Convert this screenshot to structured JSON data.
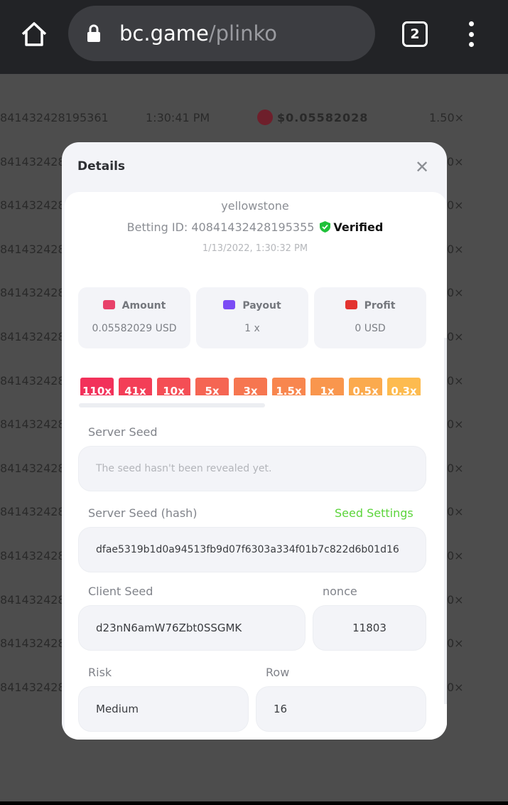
{
  "browser": {
    "url_host": "bc.game",
    "url_path": "/plinko",
    "tab_count": "2"
  },
  "background_rows": [
    {
      "id": "841432428195361",
      "time": "1:30:41 PM",
      "amount": "$0.05582028",
      "payout": "1.50×"
    },
    {
      "id": "841432428",
      "payout": "0×"
    },
    {
      "id": "841432428",
      "payout": "0×"
    },
    {
      "id": "841432428",
      "payout": "0×"
    },
    {
      "id": "841432428",
      "payout": "0×"
    },
    {
      "id": "841432428",
      "payout": "0×"
    },
    {
      "id": "841432428",
      "payout": "0×"
    },
    {
      "id": "841432428",
      "payout": "0×"
    },
    {
      "id": "841432428",
      "payout": "0×"
    },
    {
      "id": "841432428",
      "payout": "0×"
    },
    {
      "id": "841432428",
      "payout": "0×"
    },
    {
      "id": "841432428",
      "payout": "0×"
    },
    {
      "id": "841432428",
      "payout": "0×"
    },
    {
      "id": "841432428",
      "payout": "0×"
    }
  ],
  "modal": {
    "title": "Details",
    "username": "yellowstone",
    "betting_id_label": "Betting ID: 40841432428195355",
    "verified": "Verified",
    "datetime": "1/13/2022, 1:30:32 PM",
    "stats": [
      {
        "label": "Amount",
        "value": "0.05582029 USD",
        "icon": "hand-coins-icon",
        "color": "#e8416a"
      },
      {
        "label": "Payout",
        "value": "1 x",
        "icon": "card-icon",
        "color": "#7b4cf5"
      },
      {
        "label": "Profit",
        "value": "0 USD",
        "icon": "profit-hand-icon",
        "color": "#e3332f"
      }
    ],
    "multipliers": [
      {
        "label": "110x",
        "color": "#f2315a"
      },
      {
        "label": "41x",
        "color": "#f33e57"
      },
      {
        "label": "10x",
        "color": "#f44e55"
      },
      {
        "label": "5x",
        "color": "#f56553"
      },
      {
        "label": "3x",
        "color": "#f67650"
      },
      {
        "label": "1.5x",
        "color": "#f8864e"
      },
      {
        "label": "1x",
        "color": "#f9964d"
      },
      {
        "label": "0.5x",
        "color": "#fbaa4e"
      },
      {
        "label": "0.3x",
        "color": "#fdbb4f"
      },
      {
        "label": "",
        "color": "#fdbb4f"
      }
    ],
    "server_seed_label": "Server Seed",
    "server_seed_placeholder": "The seed hasn't been revealed yet.",
    "server_hash_label": "Server Seed (hash)",
    "seed_settings": "Seed Settings",
    "server_hash": "dfae5319b1d0a94513fb9d07f6303a334f01b7c822d6b01d16",
    "client_seed_label": "Client Seed",
    "client_seed": "d23nN6amW76Zbt0SSGMK",
    "nonce_label": "nonce",
    "nonce": "11803",
    "risk_label": "Risk",
    "risk": "Medium",
    "row_label": "Row",
    "row": "16"
  }
}
